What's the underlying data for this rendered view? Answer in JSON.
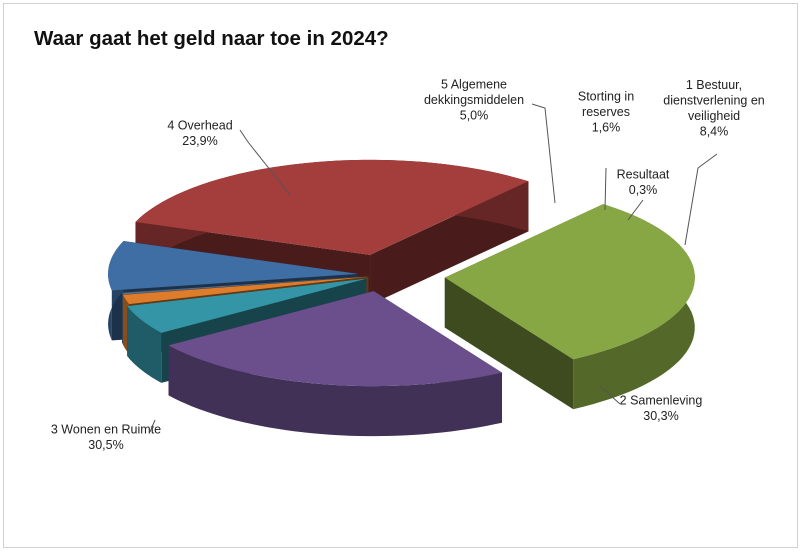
{
  "chart_data": {
    "type": "pie",
    "title": "Waar gaat het geld naar toe in 2024?",
    "slices": [
      {
        "label_lines": [
          "1 Bestuur,",
          "dienstverlening en",
          "veiligheid"
        ],
        "value_text": "8,4%",
        "value": 8.4,
        "color": "#3f6ea4"
      },
      {
        "label_lines": [
          "2 Samenleving"
        ],
        "value_text": "30,3%",
        "value": 30.3,
        "color": "#a33e3c"
      },
      {
        "label_lines": [
          "3 Wonen en Ruimte"
        ],
        "value_text": "30,5%",
        "value": 30.5,
        "color": "#87a744"
      },
      {
        "label_lines": [
          "4 Overhead"
        ],
        "value_text": "23,9%",
        "value": 23.9,
        "color": "#6a4f8c"
      },
      {
        "label_lines": [
          "5 Algemene",
          "dekkingsmiddelen"
        ],
        "value_text": "5,0%",
        "value": 5.0,
        "color": "#3495a6"
      },
      {
        "label_lines": [
          "Storting in",
          "reserves"
        ],
        "value_text": "1,6%",
        "value": 1.6,
        "color": "#dd7c2b"
      },
      {
        "label_lines": [
          "Resultaat"
        ],
        "value_text": "0,3%",
        "value": 0.3,
        "color": "#556b86"
      }
    ],
    "legend": "none",
    "style": "3d-exploded"
  }
}
